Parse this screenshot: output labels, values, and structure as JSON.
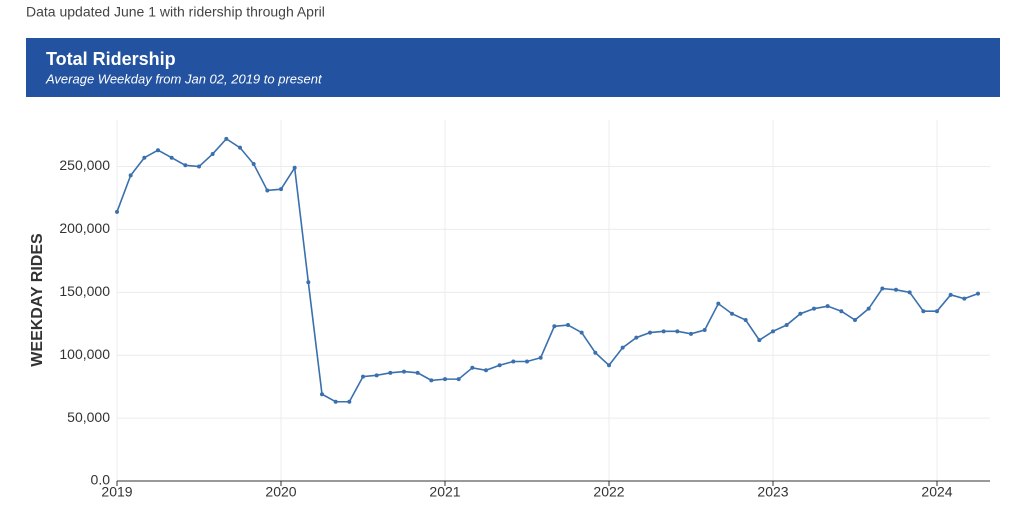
{
  "note": "Data updated June 1 with ridership through April",
  "chart_data": {
    "type": "line",
    "title": "Total Ridership",
    "subtitle": "Average Weekday from Jan 02, 2019 to present",
    "y_label": "WEEKDAY RIDES",
    "categories": [
      "2019",
      null,
      null,
      null,
      null,
      null,
      null,
      null,
      null,
      null,
      null,
      null,
      "2020",
      null,
      null,
      null,
      null,
      null,
      null,
      null,
      null,
      null,
      null,
      null,
      "2021",
      null,
      null,
      null,
      null,
      null,
      null,
      null,
      null,
      null,
      null,
      null,
      "2022",
      null,
      null,
      null,
      null,
      null,
      null,
      null,
      null,
      null,
      null,
      null,
      "2023",
      null,
      null,
      null,
      null,
      null,
      null,
      null,
      null,
      null,
      null,
      null,
      "2024",
      null,
      null,
      null
    ],
    "series": [
      {
        "name": "Average Weekday",
        "color": "#3a70ad",
        "values": [
          214000,
          243000,
          257000,
          263000,
          257000,
          251000,
          250000,
          260000,
          272000,
          265000,
          252000,
          231000,
          232000,
          249000,
          158000,
          69000,
          63000,
          63000,
          83000,
          84000,
          86000,
          87000,
          86000,
          80000,
          81000,
          81000,
          90000,
          88000,
          92000,
          95000,
          95000,
          98000,
          123000,
          124000,
          118000,
          102000,
          92000,
          106000,
          114000,
          118000,
          119000,
          119000,
          117000,
          120000,
          141000,
          133000,
          128000,
          112000,
          119000,
          124000,
          133000,
          137000,
          139000,
          135000,
          128000,
          137000,
          153000,
          152000,
          150000,
          135000,
          135000,
          148000,
          145000,
          149000
        ]
      }
    ],
    "ylim": [
      0,
      287000
    ],
    "yticks": [
      {
        "value": 0,
        "label": "0.0"
      },
      {
        "value": 50000,
        "label": "50,000"
      },
      {
        "value": 100000,
        "label": "100,000"
      },
      {
        "value": 150000,
        "label": "150,000"
      },
      {
        "value": 200000,
        "label": "200,000"
      },
      {
        "value": 250000,
        "label": "250,000"
      }
    ],
    "grid": true
  }
}
